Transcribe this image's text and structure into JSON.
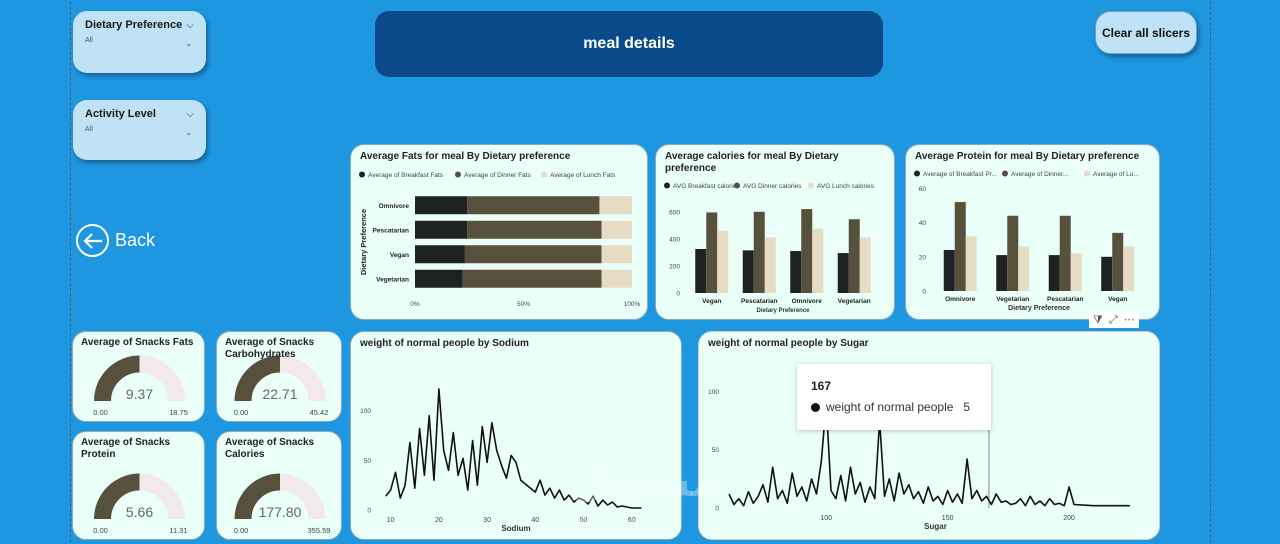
{
  "title": "meal details",
  "clear_label": "Clear all slicers",
  "back_label": "Back",
  "slicers": [
    {
      "title": "Dietary Preference",
      "value": "All"
    },
    {
      "title": "Activity Level",
      "value": "All"
    }
  ],
  "watermark": {
    "main": "مستقل",
    "sub": "mostaql.com"
  },
  "tooltip": {
    "value": "167",
    "series": "weight of normal people",
    "series_value": "5"
  },
  "gauges": [
    {
      "title1": "Average of Snacks Fats",
      "title2": "",
      "value": "9.37",
      "min": "0.00",
      "max": "18.75",
      "fraction": 0.5
    },
    {
      "title1": "Average of Snacks",
      "title2": "Carbohydrates",
      "value": "22.71",
      "min": "0.00",
      "max": "45.42",
      "fraction": 0.5
    },
    {
      "title1": "Average of Snacks",
      "title2": "Protein",
      "value": "5.66",
      "min": "0.00",
      "max": "11.31",
      "fraction": 0.5
    },
    {
      "title1": "Average of Snacks",
      "title2": "Calories",
      "value": "177.80",
      "min": "0.00",
      "max": "355.59",
      "fraction": 0.5
    }
  ],
  "colors": {
    "breakfast": "#1e2223",
    "dinner": "#56503c",
    "lunch": "#e6dcc4",
    "gauge_fill": "#56503c",
    "gauge_bg": "#f2eaea",
    "line": "#111111"
  },
  "chart_data": [
    {
      "type": "bar",
      "orientation": "horizontal",
      "stacked": "100%",
      "title": "Average Fats for meal By Dietary preference",
      "ylabel": "Dietary Preference",
      "categories": [
        "Omnivore",
        "Pescatarian",
        "Vegan",
        "Vegetarian"
      ],
      "xticks": [
        "0%",
        "50%",
        "100%"
      ],
      "series": [
        {
          "name": "Average of Breakfast Fats",
          "values": [
            24,
            24,
            23,
            22
          ]
        },
        {
          "name": "Average of Dinner Fats",
          "values": [
            61,
            62,
            63,
            64
          ]
        },
        {
          "name": "Average of Lunch Fats",
          "values": [
            15,
            14,
            14,
            14
          ]
        }
      ]
    },
    {
      "type": "bar",
      "title": "Average calories for meal By Dietary preference",
      "xlabel": "Dietary Preference",
      "categories": [
        "Vegan",
        "Pescatarian",
        "Omnivore",
        "Vegetarian"
      ],
      "ylim": [
        0,
        650
      ],
      "yticks": [
        "0",
        "200",
        "400",
        "600"
      ],
      "series": [
        {
          "name": "AVG Breakfast calories",
          "values": [
            325,
            315,
            310,
            295
          ]
        },
        {
          "name": "AVG Dinner calories",
          "values": [
            595,
            600,
            620,
            545
          ]
        },
        {
          "name": "AVG Lunch calories",
          "values": [
            460,
            410,
            475,
            410
          ]
        }
      ]
    },
    {
      "type": "bar",
      "title": "Average Protein for meal By Dietary preference",
      "xlabel": "Dietary Preference",
      "categories": [
        "Omnivore",
        "Vegetarian",
        "Pescatarian",
        "Vegan"
      ],
      "ylim": [
        0,
        62
      ],
      "yticks": [
        "0",
        "20",
        "40",
        "60"
      ],
      "series": [
        {
          "name": "Average of Breakfast Pr...",
          "values": [
            24,
            21,
            21,
            20
          ]
        },
        {
          "name": "Average of Dinner...",
          "values": [
            52,
            44,
            44,
            34
          ]
        },
        {
          "name": "Average of Lu...",
          "values": [
            32,
            26,
            22,
            26
          ]
        }
      ]
    },
    {
      "type": "line",
      "title": "weight of normal people by Sodium",
      "xlabel": "Sodium",
      "xlim": [
        8,
        64
      ],
      "ylim": [
        0,
        135
      ],
      "xticks": [
        "10",
        "20",
        "30",
        "40",
        "50",
        "60"
      ],
      "yticks": [
        "0",
        "50",
        "100"
      ],
      "x": [
        9,
        10,
        11,
        12,
        13,
        14,
        15,
        16,
        17,
        18,
        19,
        20,
        21,
        22,
        23,
        24,
        25,
        26,
        27,
        28,
        29,
        30,
        31,
        32,
        33,
        34,
        35,
        36,
        37,
        38,
        39,
        40,
        41,
        42,
        43,
        44,
        45,
        46,
        47,
        48,
        49,
        50,
        51,
        52,
        53,
        54,
        55,
        56,
        57,
        58,
        59,
        60,
        61,
        62
      ],
      "values": [
        14,
        20,
        38,
        12,
        25,
        68,
        22,
        82,
        35,
        95,
        30,
        122,
        60,
        40,
        78,
        35,
        52,
        20,
        70,
        25,
        84,
        48,
        88,
        60,
        45,
        32,
        55,
        48,
        30,
        26,
        22,
        18,
        30,
        15,
        22,
        12,
        20,
        10,
        15,
        8,
        12,
        10,
        6,
        14,
        4,
        10,
        5,
        8,
        3,
        4,
        3,
        2,
        2,
        2
      ]
    },
    {
      "type": "line",
      "title": "weight of normal people by Sugar",
      "xlabel": "Sugar",
      "xlim": [
        60,
        230
      ],
      "ylim": [
        0,
        115
      ],
      "xticks": [
        "100",
        "150",
        "200"
      ],
      "yticks": [
        "0",
        "50",
        "100"
      ],
      "x": [
        60,
        62,
        64,
        66,
        68,
        70,
        72,
        74,
        76,
        78,
        80,
        82,
        84,
        86,
        88,
        90,
        92,
        94,
        96,
        98,
        100,
        102,
        104,
        106,
        108,
        110,
        112,
        114,
        116,
        118,
        120,
        122,
        124,
        126,
        128,
        130,
        132,
        134,
        136,
        138,
        140,
        142,
        144,
        146,
        148,
        150,
        152,
        154,
        156,
        158,
        160,
        162,
        164,
        166,
        168,
        170,
        172,
        174,
        176,
        178,
        180,
        182,
        184,
        186,
        188,
        190,
        192,
        194,
        196,
        198,
        200,
        202,
        210,
        220,
        225
      ],
      "values": [
        12,
        3,
        8,
        2,
        14,
        4,
        10,
        20,
        5,
        35,
        8,
        15,
        4,
        30,
        10,
        18,
        6,
        25,
        12,
        40,
        90,
        15,
        8,
        28,
        6,
        35,
        12,
        22,
        5,
        18,
        8,
        75,
        10,
        25,
        6,
        30,
        12,
        20,
        8,
        14,
        4,
        18,
        6,
        10,
        3,
        15,
        5,
        12,
        4,
        42,
        8,
        15,
        6,
        10,
        3,
        12,
        5,
        6,
        3,
        4,
        8,
        2,
        10,
        3,
        6,
        2,
        8,
        3,
        4,
        2,
        18,
        3,
        2,
        2,
        2
      ]
    }
  ]
}
